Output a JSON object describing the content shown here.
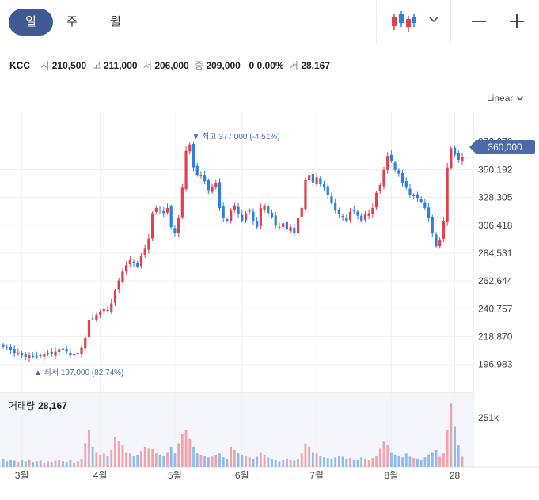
{
  "tabs": [
    {
      "label": "일",
      "active": true
    },
    {
      "label": "주",
      "active": false
    },
    {
      "label": "월",
      "active": false
    }
  ],
  "toolbar": {
    "chart_type_icon": "candlestick-icon",
    "dropdown_icon": "chevron-down-icon",
    "zoom_out_icon": "minus-icon",
    "zoom_in_icon": "plus-icon"
  },
  "quote": {
    "symbol": "KCC",
    "open_label": "시",
    "open": "210,500",
    "high_label": "고",
    "high": "211,000",
    "low_label": "저",
    "low": "206,000",
    "close_label": "종",
    "close": "209,000",
    "change": "0",
    "change_pct": "0.00%",
    "volume_label": "거",
    "volume": "28,167"
  },
  "scale_mode": "Linear",
  "current_price": "360,000",
  "high_marker": "▼ 최고 377,000 (-4.51%)",
  "low_marker": "▲ 최저 197,000 (82.74%)",
  "volume_panel": {
    "title": "거래량",
    "value": "28,167",
    "axis_label": "251k"
  },
  "colors": {
    "up": "#e0414f",
    "down": "#2e7fe0",
    "accent": "#3f5a94",
    "badge": "#4a6aa8"
  },
  "chart_data": {
    "type": "candlestick",
    "y_ticks": [
      "372,079",
      "350,192",
      "328,305",
      "306,418",
      "284,531",
      "262,644",
      "240,757",
      "218,870",
      "196,983"
    ],
    "y_tick_values": [
      372079,
      350192,
      328305,
      306418,
      284531,
      262644,
      240757,
      218870,
      196983
    ],
    "ylim": [
      188000,
      381000
    ],
    "x_labels": [
      "3월",
      "4월",
      "5월",
      "6월",
      "7월",
      "8월",
      "28"
    ],
    "x_label_index": [
      5,
      26,
      46,
      64,
      84,
      104,
      121
    ],
    "close": [
      211000,
      210000,
      208000,
      206000,
      206000,
      204000,
      203000,
      204000,
      203000,
      203000,
      204000,
      205000,
      206000,
      205000,
      207000,
      209000,
      208000,
      207000,
      204000,
      205000,
      206000,
      210000,
      218000,
      232000,
      233000,
      236000,
      238000,
      241000,
      239000,
      245000,
      255000,
      263000,
      270000,
      275000,
      279000,
      277000,
      274000,
      282000,
      288000,
      296000,
      316000,
      320000,
      318000,
      316000,
      320000,
      305000,
      300000,
      312000,
      336000,
      365000,
      370000,
      352000,
      346000,
      346000,
      341000,
      334000,
      337000,
      340000,
      320000,
      312000,
      310000,
      318000,
      322000,
      315000,
      310000,
      316000,
      318000,
      310000,
      305000,
      320000,
      322000,
      316000,
      313000,
      306000,
      305000,
      308000,
      303000,
      305000,
      300000,
      312000,
      320000,
      342000,
      346000,
      340000,
      344000,
      339000,
      336000,
      330000,
      324000,
      318000,
      315000,
      313000,
      310000,
      317000,
      318000,
      314000,
      310000,
      315000,
      316000,
      320000,
      332000,
      338000,
      350000,
      361000,
      357000,
      350000,
      347000,
      340000,
      336000,
      330000,
      330000,
      328000,
      325000,
      320000,
      312000,
      300000,
      290000,
      295000,
      310000,
      352000,
      367000,
      362000,
      358000,
      360000
    ],
    "volume_ratio": [
      0.12,
      0.08,
      0.1,
      0.09,
      0.07,
      0.1,
      0.08,
      0.11,
      0.07,
      0.08,
      0.09,
      0.06,
      0.08,
      0.07,
      0.09,
      0.1,
      0.08,
      0.07,
      0.1,
      0.06,
      0.08,
      0.12,
      0.35,
      0.55,
      0.3,
      0.22,
      0.18,
      0.2,
      0.16,
      0.25,
      0.45,
      0.38,
      0.33,
      0.22,
      0.2,
      0.16,
      0.18,
      0.24,
      0.3,
      0.28,
      0.26,
      0.2,
      0.18,
      0.16,
      0.22,
      0.3,
      0.2,
      0.35,
      0.5,
      0.55,
      0.42,
      0.3,
      0.2,
      0.18,
      0.16,
      0.14,
      0.15,
      0.18,
      0.2,
      0.14,
      0.12,
      0.3,
      0.25,
      0.2,
      0.18,
      0.16,
      0.14,
      0.12,
      0.15,
      0.22,
      0.18,
      0.14,
      0.12,
      0.1,
      0.08,
      0.1,
      0.12,
      0.1,
      0.09,
      0.12,
      0.2,
      0.35,
      0.3,
      0.22,
      0.2,
      0.16,
      0.14,
      0.13,
      0.12,
      0.14,
      0.16,
      0.15,
      0.12,
      0.13,
      0.11,
      0.1,
      0.14,
      0.12,
      0.1,
      0.13,
      0.16,
      0.28,
      0.38,
      0.32,
      0.22,
      0.18,
      0.16,
      0.14,
      0.2,
      0.15,
      0.13,
      0.12,
      0.1,
      0.14,
      0.18,
      0.22,
      0.25,
      0.15,
      0.2,
      0.55,
      0.95,
      0.6,
      0.32,
      0.15
    ]
  }
}
